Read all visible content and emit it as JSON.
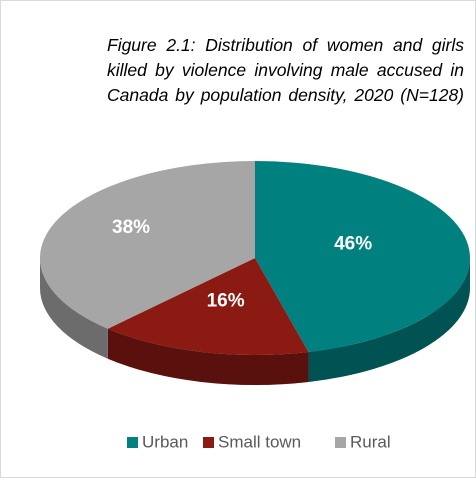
{
  "chart_data": {
    "type": "pie",
    "title": "Figure 2.1: Distribution of women and girls killed by violence involving male accused in Canada by population density, 2020 (N=128)",
    "categories": [
      "Urban",
      "Small town",
      "Rural"
    ],
    "values": [
      46,
      16,
      38
    ],
    "value_labels": [
      "46%",
      "16%",
      "38%"
    ],
    "colors": [
      "#00807f",
      "#8b1a13",
      "#a6a6a6"
    ],
    "legend": "bottom"
  }
}
